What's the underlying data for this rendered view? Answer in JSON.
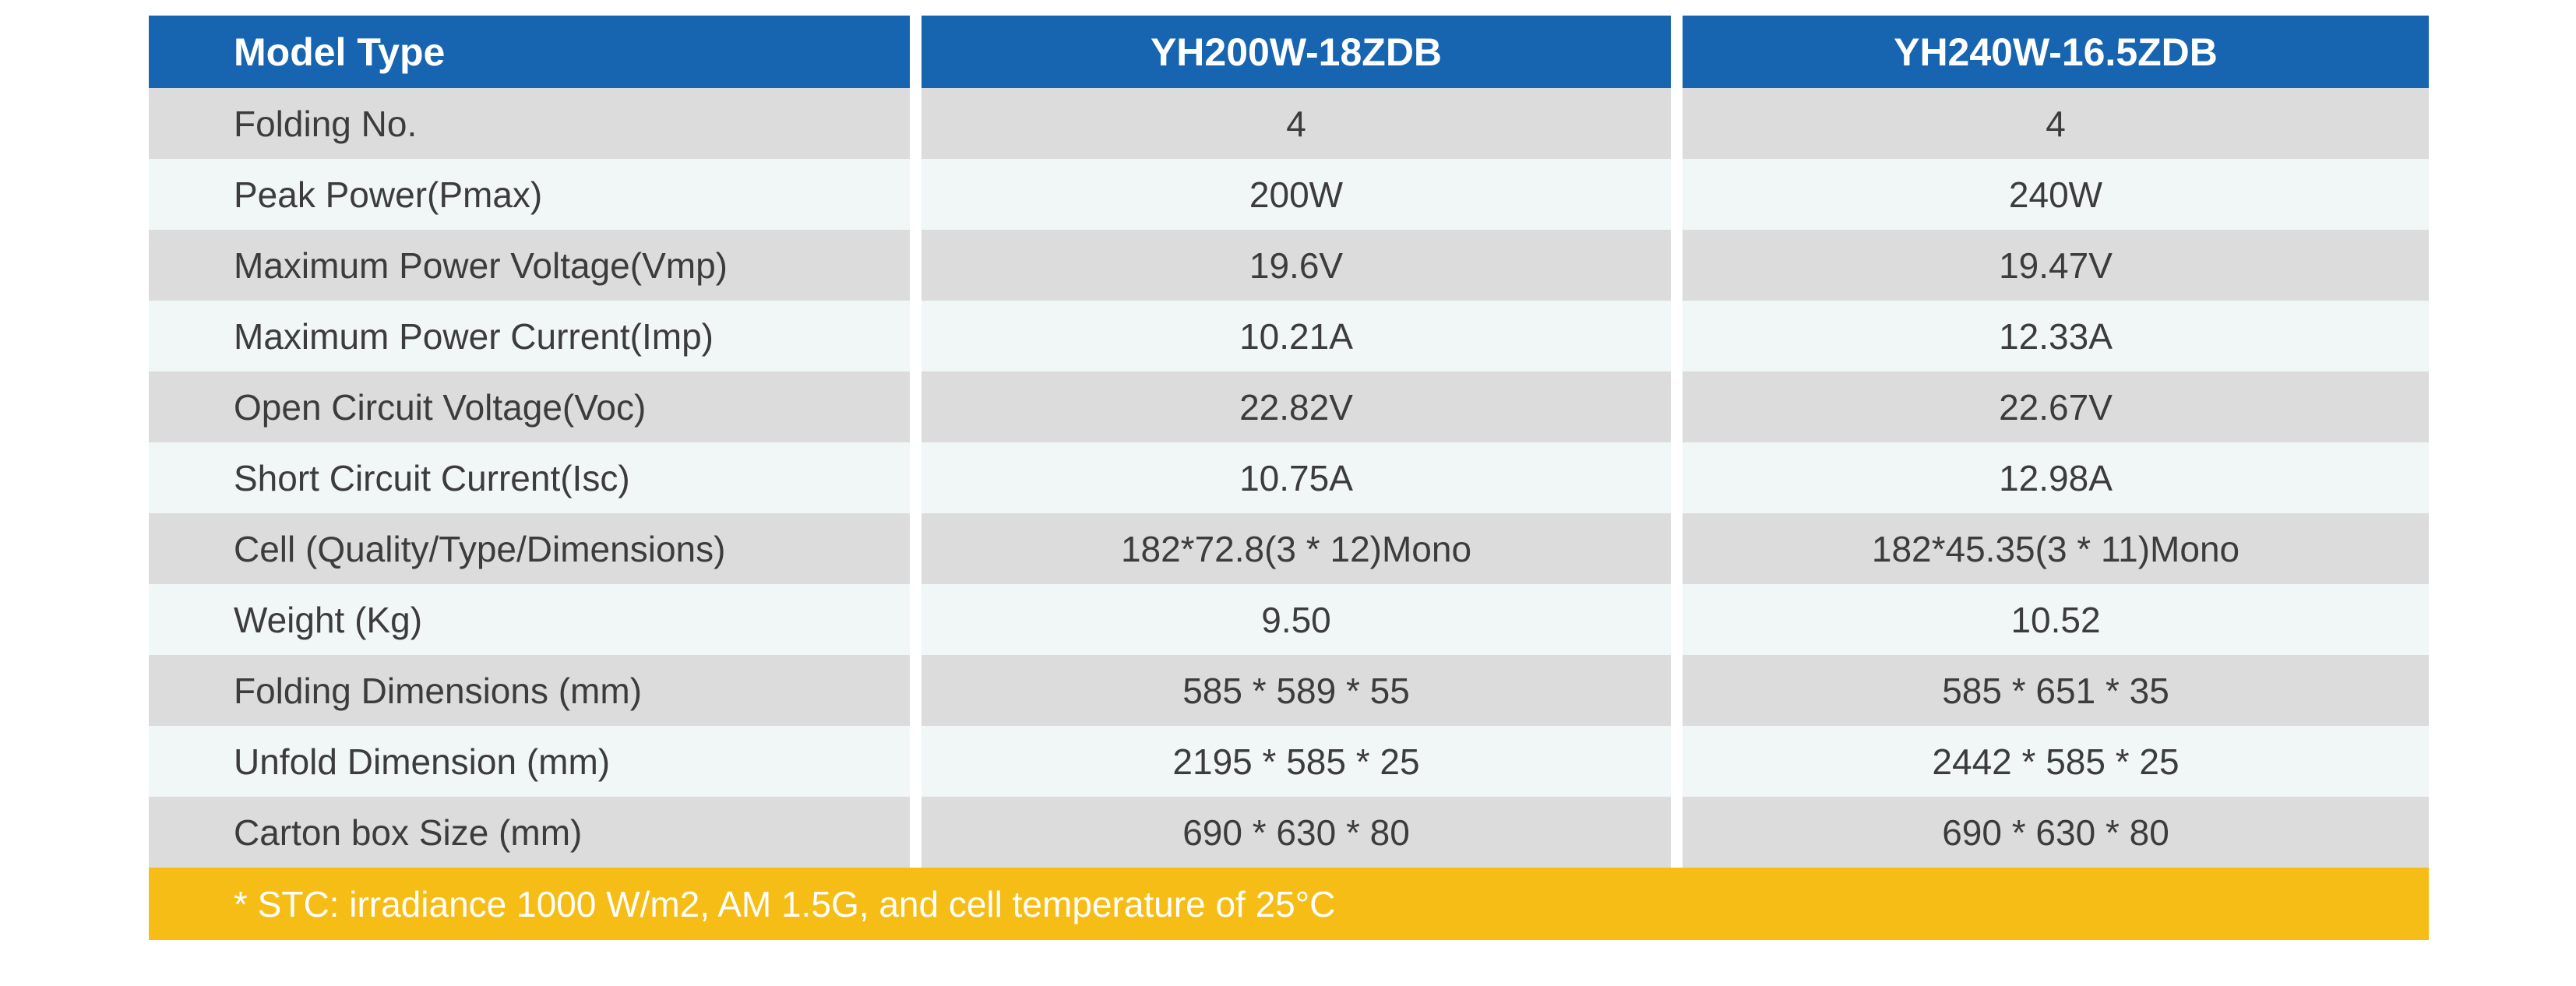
{
  "table": {
    "header": {
      "label": "Model Type",
      "model_1": "YH200W-18ZDB",
      "model_2": "YH240W-16.5ZDB"
    },
    "rows": [
      {
        "label": "Folding No.",
        "v1": "4",
        "v2": "4"
      },
      {
        "label": "Peak Power(Pmax)",
        "v1": "200W",
        "v2": "240W"
      },
      {
        "label": "Maximum Power Voltage(Vmp)",
        "v1": "19.6V",
        "v2": "19.47V"
      },
      {
        "label": "Maximum Power Current(Imp)",
        "v1": "10.21A",
        "v2": "12.33A"
      },
      {
        "label": "Open Circuit Voltage(Voc)",
        "v1": "22.82V",
        "v2": "22.67V"
      },
      {
        "label": "Short Circuit Current(Isc)",
        "v1": "10.75A",
        "v2": "12.98A"
      },
      {
        "label": "Cell (Quality/Type/Dimensions)",
        "v1": "182*72.8(3 * 12)Mono",
        "v2": "182*45.35(3 * 11)Mono"
      },
      {
        "label": "Weight (Kg)",
        "v1": "9.50",
        "v2": "10.52"
      },
      {
        "label": "Folding Dimensions (mm)",
        "v1": "585 * 589 * 55",
        "v2": "585 * 651 * 35"
      },
      {
        "label": "Unfold Dimension (mm)",
        "v1": "2195 * 585 * 25",
        "v2": "2442 * 585 * 25"
      },
      {
        "label": "Carton box Size (mm)",
        "v1": "690 * 630 * 80",
        "v2": "690 * 630 * 80"
      }
    ],
    "footnote": "* STC:  irradiance 1000 W/m2, AM 1.5G, and cell temperature of 25°C"
  },
  "colors": {
    "header_blue": "#1764b0",
    "row_shade": "#dcdcdc",
    "row_light": "#f1f6f6",
    "footer_yellow": "#f6bd16"
  }
}
